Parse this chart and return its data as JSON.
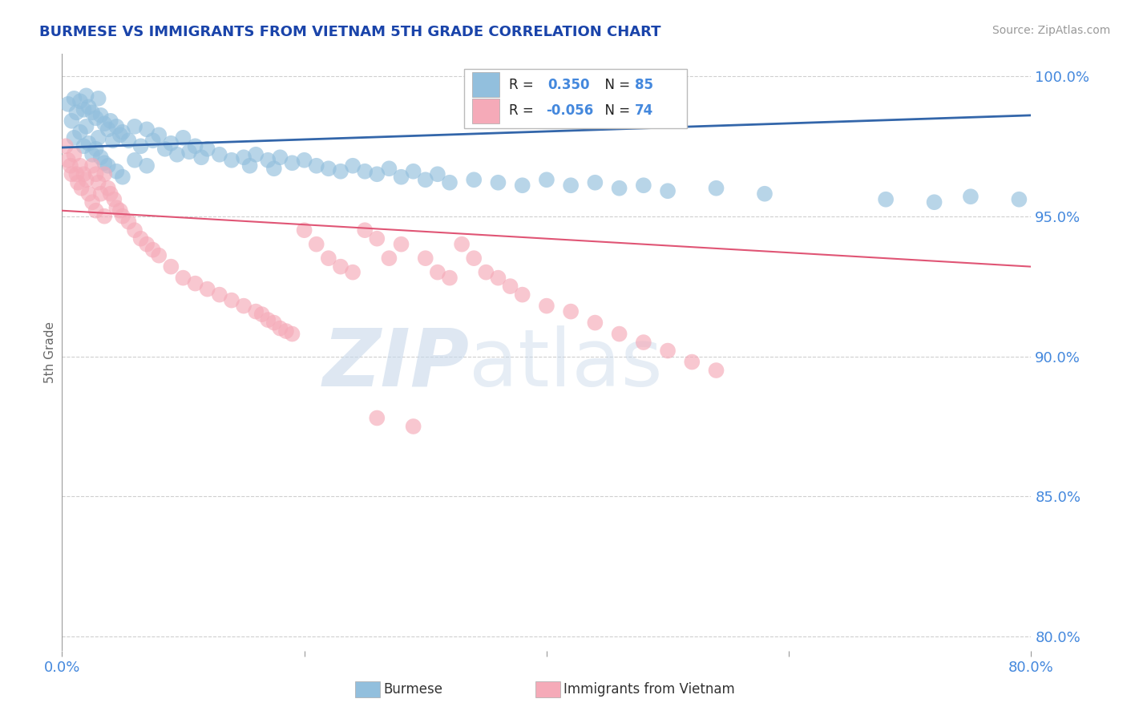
{
  "title": "BURMESE VS IMMIGRANTS FROM VIETNAM 5TH GRADE CORRELATION CHART",
  "source": "Source: ZipAtlas.com",
  "ylabel": "5th Grade",
  "xlim": [
    0.0,
    0.8
  ],
  "ylim": [
    0.795,
    1.008
  ],
  "ytick_vals": [
    0.8,
    0.85,
    0.9,
    0.95,
    1.0
  ],
  "ytick_labels": [
    "80.0%",
    "85.0%",
    "90.0%",
    "95.0%",
    "100.0%"
  ],
  "xtick_vals": [
    0.0,
    0.2,
    0.4,
    0.6,
    0.8
  ],
  "xtick_labels": [
    "0.0%",
    "",
    "",
    "",
    "80.0%"
  ],
  "legend_R_blue": "0.350",
  "legend_N_blue": "85",
  "legend_R_pink": "-0.056",
  "legend_N_pink": "74",
  "blue_color": "#92bfdd",
  "pink_color": "#f5aab8",
  "trend_blue_color": "#3366aa",
  "trend_pink_color": "#e05575",
  "grid_color": "#bbbbbb",
  "watermark_zip": "ZIP",
  "watermark_atlas": "atlas",
  "title_color": "#1a44aa",
  "axis_color": "#4488dd",
  "blue_scatter_x": [
    0.005,
    0.008,
    0.01,
    0.01,
    0.012,
    0.015,
    0.015,
    0.018,
    0.018,
    0.02,
    0.02,
    0.022,
    0.022,
    0.025,
    0.025,
    0.028,
    0.028,
    0.03,
    0.03,
    0.032,
    0.032,
    0.035,
    0.035,
    0.038,
    0.038,
    0.04,
    0.042,
    0.045,
    0.045,
    0.048,
    0.05,
    0.05,
    0.055,
    0.06,
    0.06,
    0.065,
    0.07,
    0.07,
    0.075,
    0.08,
    0.085,
    0.09,
    0.095,
    0.1,
    0.105,
    0.11,
    0.115,
    0.12,
    0.13,
    0.14,
    0.15,
    0.155,
    0.16,
    0.17,
    0.175,
    0.18,
    0.19,
    0.2,
    0.21,
    0.22,
    0.23,
    0.24,
    0.25,
    0.26,
    0.27,
    0.28,
    0.29,
    0.3,
    0.31,
    0.32,
    0.34,
    0.36,
    0.38,
    0.4,
    0.42,
    0.44,
    0.46,
    0.48,
    0.5,
    0.54,
    0.58,
    0.68,
    0.72,
    0.75,
    0.79
  ],
  "blue_scatter_y": [
    0.99,
    0.984,
    0.992,
    0.978,
    0.987,
    0.991,
    0.98,
    0.988,
    0.975,
    0.993,
    0.982,
    0.989,
    0.976,
    0.987,
    0.972,
    0.985,
    0.974,
    0.992,
    0.978,
    0.986,
    0.971,
    0.983,
    0.969,
    0.981,
    0.968,
    0.984,
    0.977,
    0.982,
    0.966,
    0.979,
    0.98,
    0.964,
    0.977,
    0.982,
    0.97,
    0.975,
    0.981,
    0.968,
    0.977,
    0.979,
    0.974,
    0.976,
    0.972,
    0.978,
    0.973,
    0.975,
    0.971,
    0.974,
    0.972,
    0.97,
    0.971,
    0.968,
    0.972,
    0.97,
    0.967,
    0.971,
    0.969,
    0.97,
    0.968,
    0.967,
    0.966,
    0.968,
    0.966,
    0.965,
    0.967,
    0.964,
    0.966,
    0.963,
    0.965,
    0.962,
    0.963,
    0.962,
    0.961,
    0.963,
    0.961,
    0.962,
    0.96,
    0.961,
    0.959,
    0.96,
    0.958,
    0.956,
    0.955,
    0.957,
    0.956
  ],
  "pink_scatter_x": [
    0.003,
    0.005,
    0.007,
    0.008,
    0.01,
    0.012,
    0.013,
    0.015,
    0.016,
    0.018,
    0.02,
    0.022,
    0.025,
    0.025,
    0.028,
    0.028,
    0.03,
    0.032,
    0.035,
    0.035,
    0.038,
    0.04,
    0.043,
    0.045,
    0.048,
    0.05,
    0.055,
    0.06,
    0.065,
    0.07,
    0.075,
    0.08,
    0.09,
    0.1,
    0.11,
    0.12,
    0.13,
    0.14,
    0.15,
    0.16,
    0.165,
    0.17,
    0.175,
    0.18,
    0.185,
    0.19,
    0.2,
    0.21,
    0.22,
    0.23,
    0.24,
    0.25,
    0.26,
    0.27,
    0.28,
    0.3,
    0.31,
    0.32,
    0.33,
    0.34,
    0.35,
    0.36,
    0.37,
    0.38,
    0.4,
    0.42,
    0.44,
    0.46,
    0.48,
    0.5,
    0.52,
    0.54,
    0.26,
    0.29
  ],
  "pink_scatter_y": [
    0.975,
    0.97,
    0.968,
    0.965,
    0.972,
    0.965,
    0.962,
    0.968,
    0.96,
    0.965,
    0.963,
    0.958,
    0.968,
    0.955,
    0.965,
    0.952,
    0.962,
    0.958,
    0.965,
    0.95,
    0.96,
    0.958,
    0.956,
    0.953,
    0.952,
    0.95,
    0.948,
    0.945,
    0.942,
    0.94,
    0.938,
    0.936,
    0.932,
    0.928,
    0.926,
    0.924,
    0.922,
    0.92,
    0.918,
    0.916,
    0.915,
    0.913,
    0.912,
    0.91,
    0.909,
    0.908,
    0.945,
    0.94,
    0.935,
    0.932,
    0.93,
    0.945,
    0.942,
    0.935,
    0.94,
    0.935,
    0.93,
    0.928,
    0.94,
    0.935,
    0.93,
    0.928,
    0.925,
    0.922,
    0.918,
    0.916,
    0.912,
    0.908,
    0.905,
    0.902,
    0.898,
    0.895,
    0.878,
    0.875
  ]
}
